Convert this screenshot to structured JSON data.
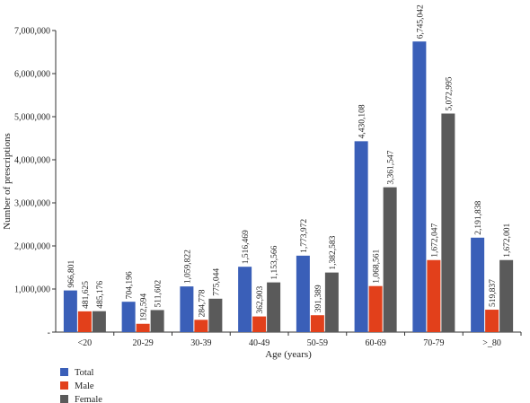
{
  "chart_data": {
    "type": "bar",
    "title": "",
    "xlabel": "Age (years)",
    "ylabel": "Number of prescriptions",
    "ylim": [
      0,
      7000000
    ],
    "yticks": [
      0,
      1000000,
      2000000,
      3000000,
      4000000,
      5000000,
      6000000,
      7000000
    ],
    "ytick_labels": [
      "-",
      "1,000,000",
      "2,000,000",
      "3,000,000",
      "4,000,000",
      "5,000,000",
      "6,000,000",
      "7,000,000"
    ],
    "categories": [
      "<20",
      "20-29",
      "30-39",
      "40-49",
      "50-59",
      "60-69",
      "70-79",
      ">_80"
    ],
    "series": [
      {
        "name": "Total",
        "color": "#3a5fb8",
        "values": [
          966801,
          704196,
          1059822,
          1516469,
          1773972,
          4430108,
          6745042,
          2191838
        ],
        "labels": [
          "966,801",
          "704,196",
          "1,059,822",
          "1,516,469",
          "1,773,972",
          "4,430,108",
          "6,745,042",
          "2,191,838"
        ]
      },
      {
        "name": "Male",
        "color": "#e2401b",
        "values": [
          481625,
          192594,
          284778,
          362903,
          391389,
          1068561,
          1672047,
          519837
        ],
        "labels": [
          "481,625",
          "192,594",
          "284,778",
          "362,903",
          "391,389",
          "1,068,561",
          "1,672,047",
          "519,837"
        ]
      },
      {
        "name": "Female",
        "color": "#5a5a5a",
        "values": [
          485176,
          511602,
          775044,
          1153566,
          1382583,
          3361547,
          5072995,
          1672001
        ],
        "labels": [
          "485,176",
          "511,602",
          "775,044",
          "1,153,566",
          "1,382,583",
          "3,361,547",
          "5,072,995",
          "1,672,001"
        ]
      }
    ],
    "grid": false,
    "legend_position": "bottom-left"
  }
}
